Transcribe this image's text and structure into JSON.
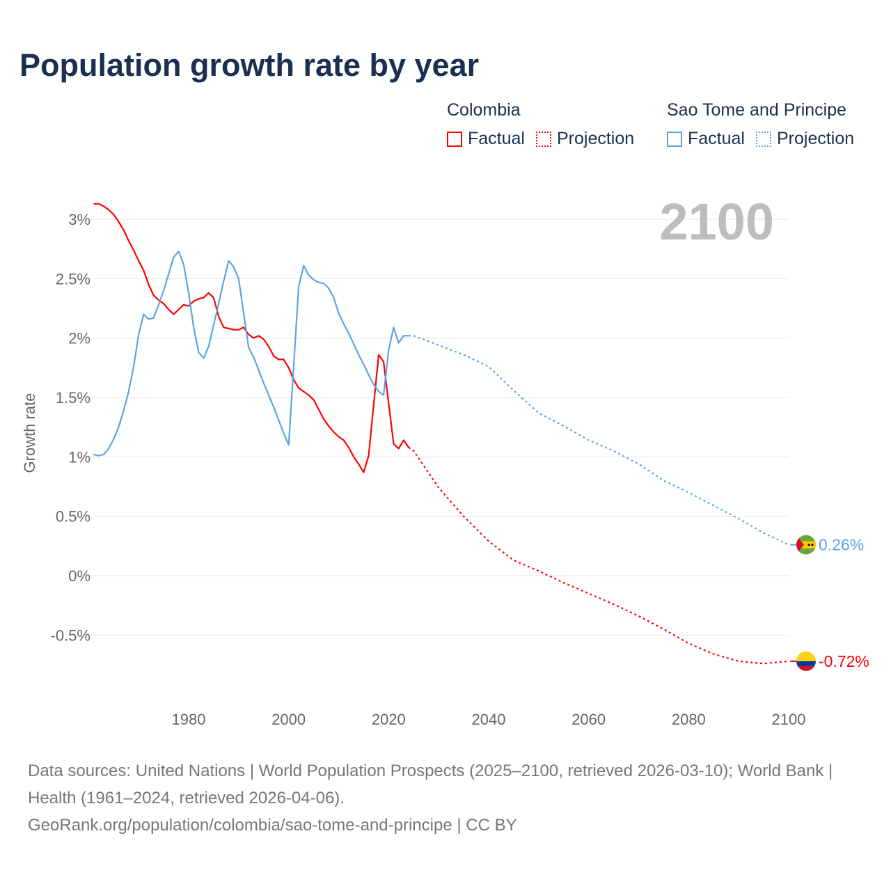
{
  "title": "Population growth rate by year",
  "big_year": "2100",
  "legend": {
    "groups": [
      {
        "name": "Colombia",
        "color": "#ff0000",
        "factual": "Factual",
        "projection": "Projection"
      },
      {
        "name": "Sao Tome and Principe",
        "color": "#5ba4e6",
        "factual": "Factual",
        "projection": "Projection"
      }
    ]
  },
  "footer": {
    "sources": "Data sources: United Nations | World Population Prospects (2025–2100, retrieved 2026-03-10); World Bank | Health (1961–2024, retrieved 2026-04-06).",
    "credit": "GeoRank.org/population/colombia/sao-tome-and-principe | CC BY"
  },
  "chart_data": {
    "type": "line",
    "title": "Population growth rate by year",
    "xlabel": "",
    "ylabel": "Growth rate",
    "xlim": [
      1961,
      2100
    ],
    "ylim": [
      -0.85,
      3.15
    ],
    "x_ticks": [
      "1980",
      "2000",
      "2020",
      "2040",
      "2060",
      "2080",
      "2100"
    ],
    "x_tick_values": [
      1980,
      2000,
      2020,
      2040,
      2060,
      2080,
      2100
    ],
    "y_ticks": [
      "3%",
      "2.5%",
      "2%",
      "1.5%",
      "1%",
      "0.5%",
      "0%",
      "-0.5%"
    ],
    "y_tick_values": [
      3,
      2.5,
      2,
      1.5,
      1,
      0.5,
      0,
      -0.5
    ],
    "grid": true,
    "legend_position": "top-right",
    "series": [
      {
        "name": "Colombia",
        "color": "#ff0000",
        "end_label": "-0.72%",
        "factual": {
          "x": [
            1961,
            1962,
            1963,
            1964,
            1965,
            1966,
            1967,
            1968,
            1969,
            1970,
            1971,
            1972,
            1973,
            1974,
            1975,
            1976,
            1977,
            1978,
            1979,
            1980,
            1981,
            1982,
            1983,
            1984,
            1985,
            1986,
            1987,
            1988,
            1989,
            1990,
            1991,
            1992,
            1993,
            1994,
            1995,
            1996,
            1997,
            1998,
            1999,
            2000,
            2001,
            2002,
            2003,
            2004,
            2005,
            2006,
            2007,
            2008,
            2009,
            2010,
            2011,
            2012,
            2013,
            2014,
            2015,
            2016,
            2017,
            2018,
            2019,
            2020,
            2021,
            2022,
            2023,
            2024
          ],
          "y": [
            3.13,
            3.13,
            3.11,
            3.08,
            3.04,
            2.98,
            2.91,
            2.82,
            2.74,
            2.65,
            2.57,
            2.45,
            2.36,
            2.32,
            2.29,
            2.24,
            2.2,
            2.24,
            2.28,
            2.27,
            2.31,
            2.33,
            2.34,
            2.38,
            2.34,
            2.18,
            2.09,
            2.08,
            2.07,
            2.07,
            2.09,
            2.03,
            2.0,
            2.02,
            1.99,
            1.93,
            1.85,
            1.82,
            1.82,
            1.75,
            1.65,
            1.58,
            1.55,
            1.52,
            1.48,
            1.4,
            1.32,
            1.26,
            1.21,
            1.17,
            1.14,
            1.08,
            1.0,
            0.94,
            0.87,
            1.01,
            1.44,
            1.86,
            1.8,
            1.45,
            1.11,
            1.07,
            1.14,
            1.08
          ]
        },
        "projection": {
          "x": [
            2024,
            2025,
            2030,
            2035,
            2040,
            2045,
            2050,
            2055,
            2060,
            2065,
            2070,
            2075,
            2080,
            2085,
            2090,
            2095,
            2100
          ],
          "y": [
            1.08,
            1.05,
            0.74,
            0.5,
            0.29,
            0.13,
            0.04,
            -0.06,
            -0.15,
            -0.24,
            -0.34,
            -0.45,
            -0.57,
            -0.66,
            -0.72,
            -0.74,
            -0.72
          ]
        }
      },
      {
        "name": "Sao Tome and Principe",
        "color": "#5ba4e6",
        "end_label": "0.26%",
        "factual": {
          "x": [
            1961,
            1962,
            1963,
            1964,
            1965,
            1966,
            1967,
            1968,
            1969,
            1970,
            1971,
            1972,
            1973,
            1974,
            1975,
            1976,
            1977,
            1978,
            1979,
            1980,
            1981,
            1982,
            1983,
            1984,
            1985,
            1986,
            1987,
            1988,
            1989,
            1990,
            1991,
            1992,
            1993,
            1994,
            1995,
            1996,
            1997,
            1998,
            1999,
            2000,
            2001,
            2002,
            2003,
            2004,
            2005,
            2006,
            2007,
            2008,
            2009,
            2010,
            2011,
            2012,
            2013,
            2014,
            2015,
            2016,
            2017,
            2018,
            2019,
            2020,
            2021,
            2022,
            2023,
            2024
          ],
          "y": [
            1.02,
            1.01,
            1.02,
            1.07,
            1.15,
            1.25,
            1.39,
            1.55,
            1.76,
            2.03,
            2.2,
            2.16,
            2.17,
            2.28,
            2.4,
            2.54,
            2.68,
            2.73,
            2.62,
            2.38,
            2.09,
            1.88,
            1.83,
            1.93,
            2.11,
            2.29,
            2.48,
            2.65,
            2.6,
            2.5,
            2.21,
            1.92,
            1.84,
            1.73,
            1.62,
            1.52,
            1.42,
            1.31,
            1.2,
            1.1,
            1.76,
            2.43,
            2.61,
            2.53,
            2.49,
            2.47,
            2.46,
            2.42,
            2.34,
            2.21,
            2.12,
            2.04,
            1.95,
            1.86,
            1.78,
            1.69,
            1.61,
            1.55,
            1.52,
            1.9,
            2.09,
            1.96,
            2.02,
            2.02
          ]
        },
        "projection": {
          "x": [
            2024,
            2025,
            2030,
            2035,
            2040,
            2045,
            2050,
            2055,
            2060,
            2065,
            2070,
            2075,
            2080,
            2085,
            2090,
            2095,
            2100
          ],
          "y": [
            2.02,
            2.02,
            1.94,
            1.86,
            1.76,
            1.56,
            1.37,
            1.26,
            1.14,
            1.05,
            0.94,
            0.8,
            0.7,
            0.59,
            0.48,
            0.36,
            0.26
          ]
        }
      }
    ]
  }
}
